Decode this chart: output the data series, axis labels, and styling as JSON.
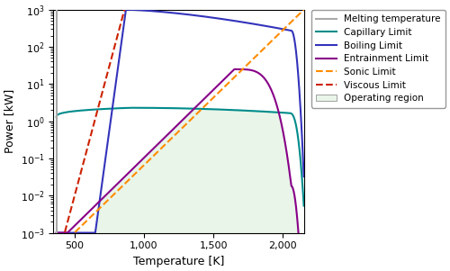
{
  "melting_temp": 371,
  "xlim": [
    350,
    2150
  ],
  "xlabel": "Temperature [K]",
  "ylabel": "Power [kW]",
  "colors": {
    "melting": "#aaaaaa",
    "capillary": "#008B8B",
    "boiling": "#3333bb",
    "entrainment": "#880088",
    "sonic": "#FF8C00",
    "viscous": "#CC2200",
    "operating": "#e8f5e8"
  },
  "legend_labels": [
    "Melting temperature",
    "Capillary Limit",
    "Boiling Limit",
    "Entrainment Limit",
    "Sonic Limit",
    "Viscous Limit",
    "Operating region"
  ]
}
